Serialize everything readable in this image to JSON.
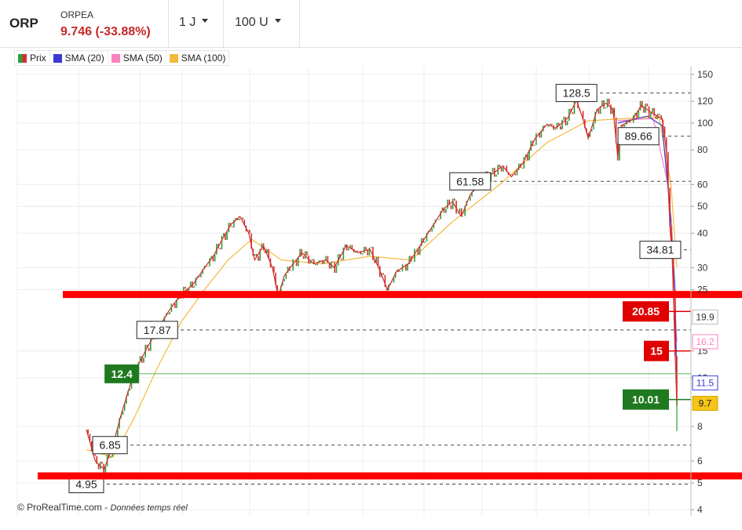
{
  "header": {
    "ticker": "ORP",
    "name": "ORPEA",
    "price": "9.746 (-33.88%)",
    "period": "1 J",
    "units": "100 U"
  },
  "legend": [
    "Prix",
    "SMA (20)",
    "SMA (50)",
    "SMA (100)"
  ],
  "colors": {
    "up": "#2e9e3a",
    "down": "#d32f2f",
    "sma20": "#3a3ad6",
    "sma50": "#ff80c0",
    "sma100": "#f5b93a",
    "support": "#ff0000"
  },
  "footer": {
    "copyright": "© ProRealTime.com",
    "sep": " - ",
    "note": "Données temps réel"
  },
  "chart_data": {
    "type": "line",
    "y_scale": "log",
    "ylim": [
      3.8,
      160
    ],
    "y_ticks": [
      {
        "value": 150,
        "label": "150"
      },
      {
        "value": 120,
        "label": "120"
      },
      {
        "value": 100,
        "label": "100"
      },
      {
        "value": 80,
        "label": "80"
      },
      {
        "value": 60,
        "label": "60"
      },
      {
        "value": 50,
        "label": "50"
      },
      {
        "value": 40,
        "label": "40"
      },
      {
        "value": 30,
        "label": "30"
      },
      {
        "value": 25,
        "label": "25"
      },
      {
        "value": 15,
        "label": "15"
      },
      {
        "value": 12,
        "label": "12"
      },
      {
        "value": 8,
        "label": "8"
      },
      {
        "value": 6,
        "label": "6"
      },
      {
        "value": 5,
        "label": "5"
      },
      {
        "value": 4,
        "label": "4"
      }
    ],
    "price_path": [
      [
        0.0,
        7.8
      ],
      [
        0.015,
        6.0
      ],
      [
        0.03,
        5.6
      ],
      [
        0.045,
        6.85
      ],
      [
        0.06,
        9.0
      ],
      [
        0.08,
        12.4
      ],
      [
        0.1,
        15.0
      ],
      [
        0.12,
        17.87
      ],
      [
        0.14,
        21.0
      ],
      [
        0.16,
        24.0
      ],
      [
        0.18,
        26.0
      ],
      [
        0.2,
        30.0
      ],
      [
        0.215,
        33.0
      ],
      [
        0.23,
        38.0
      ],
      [
        0.245,
        43.0
      ],
      [
        0.26,
        46.0
      ],
      [
        0.275,
        40.0
      ],
      [
        0.285,
        32.0
      ],
      [
        0.3,
        36.0
      ],
      [
        0.315,
        30.0
      ],
      [
        0.325,
        23.5
      ],
      [
        0.335,
        28.0
      ],
      [
        0.345,
        30.0
      ],
      [
        0.365,
        34.0
      ],
      [
        0.385,
        31.0
      ],
      [
        0.405,
        32.0
      ],
      [
        0.42,
        30.0
      ],
      [
        0.44,
        36.0
      ],
      [
        0.46,
        34.0
      ],
      [
        0.48,
        35.0
      ],
      [
        0.495,
        30.0
      ],
      [
        0.51,
        25.0
      ],
      [
        0.525,
        29.0
      ],
      [
        0.545,
        31.0
      ],
      [
        0.565,
        36.0
      ],
      [
        0.585,
        42.0
      ],
      [
        0.605,
        49.0
      ],
      [
        0.62,
        52.0
      ],
      [
        0.635,
        46.0
      ],
      [
        0.65,
        55.0
      ],
      [
        0.67,
        63.0
      ],
      [
        0.69,
        66.0
      ],
      [
        0.705,
        70.0
      ],
      [
        0.72,
        64.0
      ],
      [
        0.74,
        72.0
      ],
      [
        0.76,
        88.0
      ],
      [
        0.78,
        99.0
      ],
      [
        0.795,
        96.0
      ],
      [
        0.815,
        104.0
      ],
      [
        0.83,
        121.0
      ],
      [
        0.84,
        105.0
      ],
      [
        0.85,
        88.0
      ],
      [
        0.865,
        112.0
      ],
      [
        0.88,
        118.0
      ],
      [
        0.892,
        112.0
      ],
      [
        0.9,
        75.0
      ],
      [
        0.906,
        98.0
      ],
      [
        0.925,
        103.0
      ],
      [
        0.94,
        116.0
      ],
      [
        0.96,
        108.0
      ],
      [
        0.975,
        104.0
      ],
      [
        0.982,
        80.0
      ],
      [
        0.986,
        55.0
      ],
      [
        0.989,
        40.0
      ],
      [
        0.992,
        34.0
      ],
      [
        0.995,
        21.0
      ],
      [
        0.997,
        15.0
      ],
      [
        1.0,
        9.7
      ]
    ],
    "sma20_path": [
      [
        0.9,
        100.0
      ],
      [
        0.95,
        106.0
      ],
      [
        0.975,
        98.0
      ],
      [
        0.99,
        45.0
      ],
      [
        0.997,
        25.0
      ],
      [
        1.0,
        11.5
      ]
    ],
    "sma50_path": [
      [
        0.9,
        102.0
      ],
      [
        0.96,
        104.0
      ],
      [
        0.985,
        60.0
      ],
      [
        1.0,
        16.2
      ]
    ],
    "sma100_path": [
      [
        0.0,
        6.6
      ],
      [
        0.045,
        6.2
      ],
      [
        0.08,
        8.5
      ],
      [
        0.12,
        13.0
      ],
      [
        0.16,
        19.0
      ],
      [
        0.2,
        25.0
      ],
      [
        0.24,
        32.0
      ],
      [
        0.28,
        38.0
      ],
      [
        0.33,
        32.0
      ],
      [
        0.4,
        31.0
      ],
      [
        0.48,
        33.0
      ],
      [
        0.55,
        32.0
      ],
      [
        0.62,
        44.0
      ],
      [
        0.7,
        60.0
      ],
      [
        0.78,
        85.0
      ],
      [
        0.85,
        102.0
      ],
      [
        0.92,
        104.0
      ],
      [
        0.97,
        105.0
      ],
      [
        0.99,
        60.0
      ],
      [
        1.0,
        30.0
      ]
    ],
    "dashed_levels": [
      {
        "value": 128.5,
        "label": "128.5"
      },
      {
        "value": 89.66,
        "label": "89.66"
      },
      {
        "value": 61.58,
        "label": "61.58"
      },
      {
        "value": 34.81,
        "label": "34.81"
      },
      {
        "value": 17.87,
        "label": "17.87"
      },
      {
        "value": 6.85,
        "label": "6.85"
      },
      {
        "value": 4.95,
        "label": "4.95"
      }
    ],
    "green_level": {
      "value": 12.4,
      "label": "12.4"
    },
    "support_lines": [
      24.0,
      5.3
    ],
    "right_markers": [
      {
        "value": 20.85,
        "label": "20.85",
        "style": "red-box"
      },
      {
        "value": 15,
        "label": "15",
        "style": "red-box"
      },
      {
        "value": 10.01,
        "label": "10.01",
        "style": "green-box"
      },
      {
        "value": 19.9,
        "label": "19.9",
        "style": "axis-plain"
      },
      {
        "value": 16.2,
        "label": "16.2",
        "style": "axis-pink"
      },
      {
        "value": 11.5,
        "label": "11.5",
        "style": "axis-blue"
      },
      {
        "value": 9.7,
        "label": "9.7",
        "style": "axis-yellow"
      }
    ]
  }
}
